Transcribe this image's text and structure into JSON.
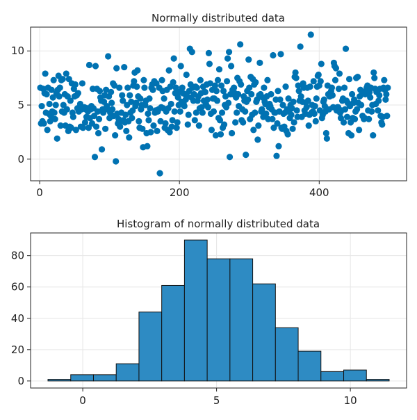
{
  "chart_data": [
    {
      "type": "scatter",
      "title": "Normally distributed data",
      "xlabel": "",
      "ylabel": "",
      "xlim": [
        -13,
        525
      ],
      "ylim": [
        -2,
        12.2
      ],
      "xticks": [
        0,
        200,
        400
      ],
      "yticks": [
        0,
        5,
        10
      ],
      "grid": true,
      "color": "#0072B2",
      "n": 500,
      "y": [
        6.6,
        3.3,
        4.9,
        3.5,
        6.5,
        3.3,
        6.1,
        7.9,
        4.3,
        6.0,
        2.7,
        6.6,
        4.2,
        5.1,
        3.5,
        4.0,
        6.4,
        4.4,
        5.7,
        7.3,
        4.3,
        3.7,
        5.0,
        6.1,
        1.9,
        6.4,
        7.7,
        5.8,
        6.6,
        3.1,
        7.3,
        4.4,
        7.4,
        5.0,
        4.3,
        6.0,
        3.1,
        7.9,
        4.6,
        5.8,
        2.6,
        7.4,
        3.0,
        5.4,
        2.9,
        7.0,
        4.3,
        3.9,
        6.5,
        5.8,
        6.9,
        2.7,
        5.9,
        4.7,
        6.1,
        4.4,
        4.6,
        5.1,
        3.0,
        4.6,
        7.0,
        2.9,
        4.7,
        4.8,
        3.4,
        4.6,
        3.9,
        4.7,
        4.4,
        2.9,
        8.7,
        3.8,
        4.6,
        4.9,
        3.3,
        6.5,
        4.7,
        4.0,
        0.2,
        8.6,
        3.0,
        6.5,
        4.4,
        2.4,
        3.7,
        6.3,
        5.7,
        5.4,
        0.9,
        4.6,
        4.3,
        5.3,
        5.9,
        2.8,
        6.4,
        4.9,
        4.6,
        9.5,
        5.8,
        3.8,
        4.3,
        6.2,
        5.2,
        4.6,
        7.0,
        4.0,
        6.8,
        2.2,
        -0.2,
        8.4,
        4.2,
        3.3,
        3.7,
        6.6,
        3.0,
        3.5,
        4.3,
        5.9,
        5.4,
        3.6,
        8.5,
        3.4,
        4.1,
        2.6,
        5.0,
        6.6,
        3.5,
        2.0,
        5.9,
        4.3,
        5.3,
        3.8,
        4.5,
        6.8,
        7.2,
        8.0,
        4.9,
        5.2,
        6.7,
        8.2,
        5.8,
        3.5,
        2.9,
        5.6,
        4.6,
        5.0,
        2.8,
        1.1,
        7.3,
        6.6,
        5.0,
        5.4,
        2.4,
        1.2,
        4.2,
        3.6,
        5.6,
        4.7,
        2.5,
        6.6,
        6.9,
        6.4,
        3.1,
        7.2,
        4.3,
        4.5,
        7.0,
        2.6,
        4.4,
        4.6,
        6.6,
        -1.3,
        3.5,
        4.8,
        7.3,
        6.3,
        4.7,
        5.6,
        2.9,
        3.3,
        4.4,
        6.4,
        2.7,
        4.7,
        8.2,
        2.5,
        6.7,
        5.1,
        3.0,
        3.6,
        7.1,
        9.3,
        4.4,
        6.1,
        6.6,
        2.9,
        3.4,
        5.7,
        5.0,
        6.2,
        4.4,
        8.6,
        5.3,
        6.6,
        6.1,
        5.1,
        4.9,
        6.0,
        5.5,
        7.8,
        5.8,
        3.2,
        4.1,
        6.3,
        10.2,
        6.9,
        5.7,
        9.9,
        6.6,
        5.4,
        6.0,
        3.6,
        6.7,
        4.3,
        6.6,
        5.4,
        5.8,
        3.1,
        4.7,
        7.3,
        6.1,
        4.8,
        4.3,
        6.7,
        5.4,
        6.2,
        6.2,
        5.1,
        6.9,
        5.5,
        4.8,
        9.8,
        8.8,
        7.0,
        4.2,
        2.7,
        6.4,
        5.6,
        4.4,
        5.6,
        6.8,
        2.2,
        6.3,
        5.4,
        7.3,
        3.8,
        8.3,
        3.6,
        2.3,
        6.8,
        4.3,
        2.9,
        6.3,
        3.2,
        5.0,
        5.8,
        4.8,
        7.2,
        9.3,
        5.2,
        9.9,
        0.2,
        6.0,
        8.6,
        2.4,
        6.4,
        6.0,
        6.6,
        6.1,
        3.4,
        5.7,
        4.3,
        7.5,
        6.0,
        4.9,
        7.2,
        10.6,
        6.9,
        3.6,
        4.6,
        3.4,
        5.8,
        5.4,
        4.4,
        0.4,
        5.3,
        6.3,
        5.5,
        9.2,
        6.6,
        3.7,
        7.6,
        6.0,
        4.1,
        7.4,
        2.7,
        6.9,
        4.3,
        7.1,
        5.3,
        5.5,
        1.8,
        3.1,
        5.9,
        8.9,
        6.0,
        4.4,
        4.6,
        5.7,
        3.9,
        6.6,
        5.3,
        5.1,
        4.2,
        5.8,
        7.3,
        3.7,
        4.8,
        5.1,
        4.9,
        6.0,
        4.6,
        3.7,
        9.6,
        2.9,
        4.3,
        4.3,
        5.5,
        0.3,
        3.3,
        6.3,
        1.2,
        4.4,
        5.5,
        9.7,
        2.9,
        2.8,
        5.0,
        4.2,
        3.0,
        4.3,
        6.7,
        2.6,
        4.6,
        2.3,
        5.6,
        4.4,
        3.8,
        5.0,
        4.1,
        4.7,
        2.8,
        5.3,
        3.4,
        7.6,
        8.0,
        7.5,
        4.5,
        3.9,
        6.8,
        6.3,
        5.4,
        10.4,
        5.8,
        3.9,
        5.3,
        7.0,
        6.6,
        4.5,
        4.2,
        5.2,
        4.8,
        6.6,
        5.4,
        3.1,
        4.1,
        6.7,
        11.5,
        4.3,
        5.0,
        4.4,
        7.2,
        4.2,
        4.9,
        3.5,
        5.6,
        6.7,
        7.7,
        7.8,
        6.8,
        4.5,
        7.2,
        8.8,
        3.8,
        4.1,
        5.3,
        5.5,
        4.9,
        4.4,
        2.4,
        1.9,
        6.8,
        6.0,
        4.6,
        5.8,
        5.9,
        6.3,
        6.6,
        5.9,
        4.8,
        8.9,
        8.6,
        7.3,
        8.4,
        4.5,
        4.8,
        4.8,
        6.5,
        7.9,
        4.3,
        3.8,
        4.5,
        5.4,
        5.6,
        3.4,
        6.6,
        4.6,
        10.2,
        5.4,
        3.9,
        5.2,
        2.4,
        7.4,
        4.9,
        3.4,
        2.2,
        6.0,
        3.8,
        5.2,
        5.5,
        3.7,
        4.4,
        7.5,
        4.6,
        7.6,
        5.2,
        2.7,
        5.8,
        6.4,
        5.0,
        6.0,
        4.0,
        3.9,
        3.7,
        3.8,
        6.0,
        6.3,
        6.6,
        6.8,
        4.5,
        3.7,
        6.2,
        5.7,
        6.6,
        4.4,
        5.0,
        2.2,
        8.0,
        7.5,
        6.5,
        5.1,
        6.2,
        6.2,
        4.5,
        5.4,
        5.9,
        6.5,
        4.0,
        3.4,
        3.2,
        3.9,
        6.6,
        7.3,
        6.4,
        5.5,
        6.0,
        4.0,
        6.6
      ]
    },
    {
      "type": "bar",
      "title": "Histogram of normally distributed data",
      "xlabel": "",
      "ylabel": "",
      "bin_edges": [
        -1.3,
        -0.45,
        0.4,
        1.25,
        2.1,
        2.95,
        3.8,
        4.65,
        5.5,
        6.35,
        7.2,
        8.05,
        8.9,
        9.75,
        10.6,
        11.45
      ],
      "counts": [
        1,
        4,
        4,
        11,
        44,
        61,
        90,
        78,
        78,
        62,
        34,
        19,
        6,
        7,
        1
      ],
      "xlim": [
        -1.95,
        12.1
      ],
      "ylim": [
        -4.5,
        94.5
      ],
      "xticks": [
        0,
        5,
        10
      ],
      "yticks": [
        0,
        20,
        40,
        60,
        80
      ],
      "grid": true,
      "color": "#2E8BC3"
    }
  ]
}
